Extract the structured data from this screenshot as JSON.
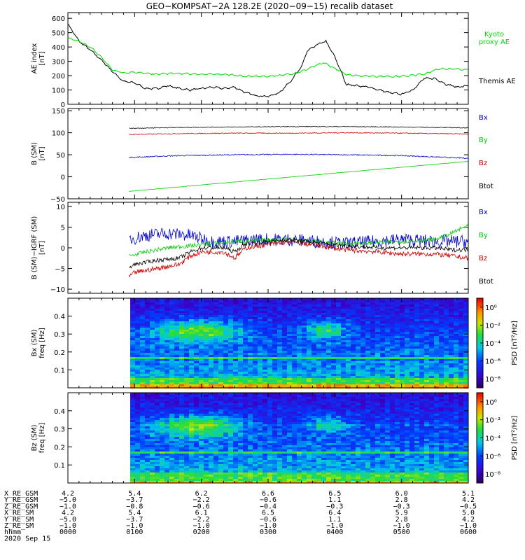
{
  "title": "GEO−KOMPSAT−2A 128.2E (2020−09−15) recalib dataset",
  "chart_data": [
    {
      "panel": "ae",
      "type": "line",
      "ylabel_lines": [
        "AE index",
        "[nT]"
      ],
      "ylim": [
        0,
        640
      ],
      "y_ticks": [
        0,
        100,
        200,
        300,
        400,
        500,
        600
      ],
      "y_tick_labels": [
        "0",
        "100",
        "200",
        "300",
        "400",
        "500",
        "600"
      ],
      "x_minutes_range": [
        0,
        360
      ],
      "series": [
        {
          "name": "Themis AE",
          "color": "#000000",
          "x": [
            0,
            10,
            20,
            30,
            40,
            50,
            60,
            70,
            80,
            90,
            100,
            110,
            120,
            130,
            140,
            150,
            160,
            170,
            180,
            190,
            200,
            210,
            215,
            225,
            232,
            240,
            245,
            250,
            260,
            270,
            280,
            290,
            300,
            310,
            320,
            330,
            340,
            350,
            360
          ],
          "values": [
            560,
            440,
            380,
            310,
            230,
            160,
            150,
            110,
            110,
            130,
            110,
            100,
            110,
            120,
            110,
            120,
            80,
            60,
            55,
            80,
            160,
            260,
            370,
            420,
            440,
            330,
            240,
            140,
            130,
            120,
            100,
            80,
            70,
            100,
            180,
            180,
            140,
            120,
            130
          ]
        },
        {
          "name_lines": [
            "Kyoto",
            "proxy AE"
          ],
          "color": "#00dd00",
          "x": [
            0,
            10,
            20,
            30,
            40,
            50,
            60,
            70,
            80,
            90,
            100,
            120,
            140,
            160,
            180,
            200,
            210,
            220,
            230,
            240,
            250,
            260,
            280,
            300,
            320,
            330,
            340,
            350,
            360
          ],
          "values": [
            460,
            440,
            400,
            330,
            240,
            220,
            225,
            215,
            210,
            215,
            215,
            210,
            210,
            195,
            195,
            210,
            230,
            260,
            290,
            250,
            210,
            200,
            195,
            195,
            210,
            240,
            250,
            245,
            240
          ]
        }
      ]
    },
    {
      "panel": "b",
      "type": "line",
      "ylabel_lines": [
        "B (SM)",
        "[nT]"
      ],
      "ylim": [
        -50,
        155
      ],
      "y_ticks": [
        -50,
        0,
        50,
        100,
        150
      ],
      "y_tick_labels": [
        "−50",
        "0",
        "50",
        "100",
        "150"
      ],
      "x_minutes_range": [
        0,
        360
      ],
      "series": [
        {
          "name": "Bx",
          "color": "#0000cc",
          "x": [
            55,
            100,
            150,
            200,
            250,
            300,
            360
          ],
          "values": [
            44,
            48,
            50,
            51,
            50,
            48,
            42
          ],
          "noise": 1.2
        },
        {
          "name": "By",
          "color": "#00cc00",
          "x": [
            55,
            360
          ],
          "values": [
            -33,
            35
          ],
          "noise": 0.5
        },
        {
          "name": "Bz",
          "color": "#cc0000",
          "x": [
            55,
            100,
            150,
            200,
            250,
            300,
            360
          ],
          "values": [
            96,
            98,
            99,
            99,
            100,
            99,
            97
          ],
          "noise": 1.0
        },
        {
          "name": "Btot",
          "color": "#000000",
          "x": [
            55,
            100,
            150,
            200,
            250,
            300,
            360
          ],
          "values": [
            110,
            112,
            113,
            114,
            114,
            113,
            111
          ],
          "noise": 0.8
        }
      ]
    },
    {
      "panel": "db",
      "type": "line",
      "ylabel_lines": [
        "B (SM)−IGRF (SM)",
        "[nT]"
      ],
      "ylim": [
        -11,
        11
      ],
      "y_ticks": [
        -10,
        -5,
        0,
        5,
        10
      ],
      "y_tick_labels": [
        "−10",
        "−5",
        "0",
        "5",
        "10"
      ],
      "x_minutes_range": [
        0,
        360
      ],
      "series": [
        {
          "name": "Bx",
          "color": "#0000cc",
          "x": [
            55,
            70,
            90,
            110,
            130,
            150,
            170,
            200,
            250,
            300,
            330,
            360
          ],
          "values": [
            2,
            3,
            3.5,
            3,
            1.5,
            1.5,
            2,
            2,
            1,
            2,
            1.5,
            1.5
          ],
          "noise": 1.6
        },
        {
          "name": "By",
          "color": "#00cc00",
          "x": [
            55,
            70,
            90,
            110,
            130,
            150,
            170,
            200,
            250,
            300,
            330,
            345,
            360
          ],
          "values": [
            -2,
            -1,
            0,
            0.5,
            1,
            1.5,
            1.8,
            2,
            1,
            1.5,
            2,
            3.5,
            5.5
          ],
          "noise": 0.5
        },
        {
          "name": "Bz",
          "color": "#cc0000",
          "x": [
            55,
            60,
            80,
            100,
            110,
            120,
            140,
            150,
            160,
            200,
            250,
            280,
            300,
            330,
            345,
            360
          ],
          "values": [
            -7,
            -6,
            -5,
            -4,
            -2,
            -1,
            -1,
            -2.5,
            0,
            1.5,
            -0.5,
            -1,
            -1.5,
            -1.5,
            -2,
            -2.5
          ],
          "noise": 0.6
        },
        {
          "name": "Btot",
          "color": "#000000",
          "x": [
            55,
            60,
            80,
            100,
            110,
            120,
            140,
            150,
            160,
            200,
            250,
            280,
            300,
            330,
            345,
            360
          ],
          "values": [
            -5,
            -4,
            -3,
            -2.5,
            -1,
            0,
            0,
            -1,
            1,
            2,
            0.5,
            0,
            0,
            0,
            -0.5,
            -0.5
          ],
          "noise": 0.5
        }
      ]
    },
    {
      "panel": "spec_bx",
      "type": "heatmap",
      "ylabel_lines": [
        "Bx (SM)",
        "freq [Hz]"
      ],
      "ylim": [
        0,
        0.5
      ],
      "y_ticks": [
        0.1,
        0.2,
        0.3,
        0.4
      ],
      "y_tick_labels": [
        "0.1",
        "0.2",
        "0.3",
        "0.4"
      ],
      "x_minutes_range": [
        56,
        360
      ],
      "colorbar": {
        "label": "PSD [nT²/Hz]",
        "log_range": [
          -9,
          1
        ],
        "tick_exponents": [
          0,
          -2,
          -4,
          -6,
          -8
        ],
        "tick_labels": [
          "10⁰",
          "10⁻²",
          "10⁻⁴",
          "10⁻⁶",
          "10⁻⁸"
        ]
      }
    },
    {
      "panel": "spec_bz",
      "type": "heatmap",
      "ylabel_lines": [
        "Bz (SM)",
        "freq [Hz]"
      ],
      "ylim": [
        0,
        0.5
      ],
      "y_ticks": [
        0.1,
        0.2,
        0.3,
        0.4
      ],
      "y_tick_labels": [
        "0.1",
        "0.2",
        "0.3",
        "0.4"
      ],
      "x_minutes_range": [
        56,
        360
      ],
      "colorbar": {
        "label": "PSD [nT²/Hz]",
        "log_range": [
          -9,
          1
        ],
        "tick_exponents": [
          0,
          -2,
          -4,
          -6,
          -8
        ],
        "tick_labels": [
          "10⁰",
          "10⁻²",
          "10⁻⁴",
          "10⁻⁶",
          "10⁻⁸"
        ]
      }
    }
  ],
  "ephemeris": {
    "rows": [
      {
        "label": "X_RE_GSM",
        "values": [
          "4.2",
          "5.4",
          "6.2",
          "6.6",
          "6.5",
          "6.0",
          "5.1"
        ]
      },
      {
        "label": "Y_RE_GSM",
        "values": [
          "−5.0",
          "−3.7",
          "−2.2",
          "−0.6",
          "1.1",
          "2.8",
          "4.2"
        ]
      },
      {
        "label": "Z_RE_GSM",
        "values": [
          "−1.0",
          "−0.8",
          "−0.6",
          "−0.4",
          "−0.3",
          "−0.3",
          "−0.5"
        ]
      },
      {
        "label": "X_RE_SM",
        "values": [
          "4.2",
          "5.4",
          "6.1",
          "6.5",
          "6.4",
          "5.9",
          "5.0"
        ]
      },
      {
        "label": "Y_RE_SM",
        "values": [
          "−5.0",
          "−3.7",
          "−2.2",
          "−0.6",
          "1.1",
          "2.8",
          "4.2"
        ]
      },
      {
        "label": "Z_RE_SM",
        "values": [
          "−1.0",
          "−1.0",
          "−1.0",
          "−1.0",
          "−1.0",
          "−1.0",
          "−1.0"
        ]
      },
      {
        "label": "hhmm",
        "values": [
          "0000",
          "0100",
          "0200",
          "0300",
          "0400",
          "0500",
          "0600"
        ]
      }
    ],
    "date": "2020 Sep 15"
  }
}
